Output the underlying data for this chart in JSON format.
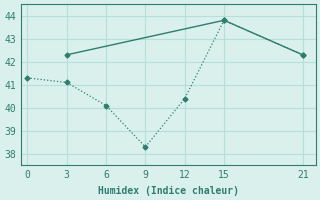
{
  "xlabel": "Humidex (Indice chaleur)",
  "line1_x": [
    3,
    15,
    21
  ],
  "line1_y": [
    42.3,
    43.8,
    42.3
  ],
  "line2_x": [
    0,
    3,
    6,
    9,
    12,
    15,
    21
  ],
  "line2_y": [
    41.3,
    41.1,
    40.1,
    38.3,
    40.4,
    43.8,
    42.3
  ],
  "line_color": "#2e7d6e",
  "bg_color": "#daf0ec",
  "grid_color": "#b5dfd8",
  "xlim": [
    -0.5,
    22
  ],
  "ylim": [
    37.5,
    44.5
  ],
  "xticks": [
    0,
    3,
    6,
    9,
    12,
    15,
    21
  ],
  "yticks": [
    38,
    39,
    40,
    41,
    42,
    43,
    44
  ]
}
